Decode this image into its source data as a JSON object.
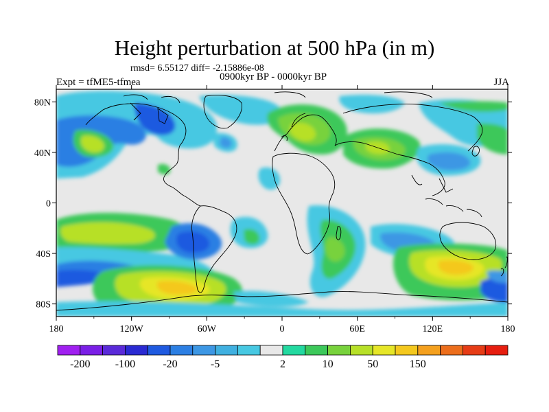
{
  "title": "Height perturbation at 500 hPa (in m)",
  "stats": "rmsd= 6.55127 diff= -2.15886e-08",
  "experiment": "Expt = tfME5-tfmea",
  "period": "0900kyr BP - 0000kyr BP",
  "season": "JJA",
  "lon_ticks": [
    "180",
    "120W",
    "60W",
    "0",
    "60E",
    "120E",
    "180"
  ],
  "lat_ticks": [
    "80N",
    "40N",
    "0",
    "40S",
    "80S"
  ],
  "colorbar": {
    "colors": [
      "#a020f0",
      "#7a1fe6",
      "#5a2ad9",
      "#2a2ad2",
      "#1f5ae0",
      "#2c7fe3",
      "#3d97e4",
      "#40b0e0",
      "#47c8e2",
      "#e8e8e8",
      "#23d9a0",
      "#3cc85a",
      "#78d23c",
      "#b7e028",
      "#e6e628",
      "#f4c81e",
      "#f4a01e",
      "#ec6e1c",
      "#e63c16",
      "#e61e10"
    ],
    "labels": [
      "-200",
      "-100",
      "-20",
      "-5",
      "2",
      "10",
      "50",
      "150"
    ],
    "label_index": [
      1,
      3,
      5,
      7,
      10,
      12,
      14,
      16
    ]
  }
}
